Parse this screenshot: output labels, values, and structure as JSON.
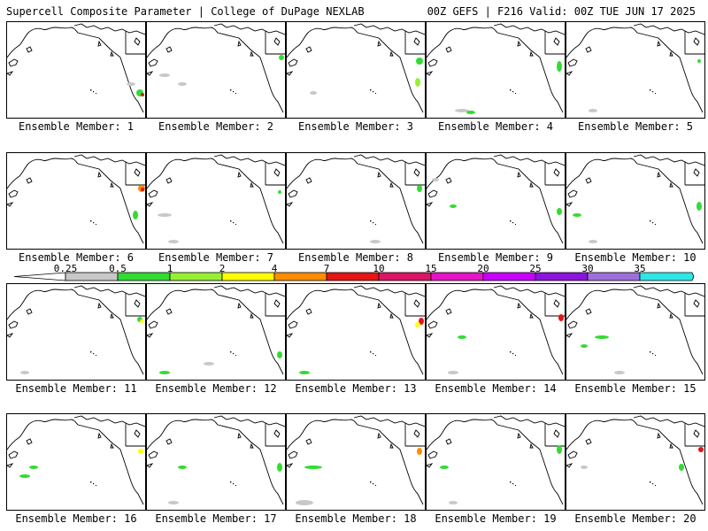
{
  "header": {
    "left": "Supercell Composite Parameter | College of DuPage NEXLAB",
    "right": "00Z GEFS | F216 Valid: 00Z TUE JUN 17 2025"
  },
  "colorbar": {
    "ticks": [
      "0.25",
      "0.5",
      "1",
      "2",
      "4",
      "7",
      "10",
      "15",
      "20",
      "25",
      "30",
      "35"
    ],
    "colors": [
      "#c8c8c8",
      "#32dc32",
      "#96f032",
      "#ffff00",
      "#ff8c00",
      "#e61414",
      "#dc1464",
      "#e614c8",
      "#c800ff",
      "#8c14dc",
      "#a06edc",
      "#2de6e6"
    ]
  },
  "panels": [
    {
      "label": "Ensemble Member: 1"
    },
    {
      "label": "Ensemble Member: 2"
    },
    {
      "label": "Ensemble Member: 3"
    },
    {
      "label": "Ensemble Member: 4"
    },
    {
      "label": "Ensemble Member: 5"
    },
    {
      "label": "Ensemble Member: 6"
    },
    {
      "label": "Ensemble Member: 7"
    },
    {
      "label": "Ensemble Member: 8"
    },
    {
      "label": "Ensemble Member: 9"
    },
    {
      "label": "Ensemble Member: 10"
    },
    {
      "label": "Ensemble Member: 11"
    },
    {
      "label": "Ensemble Member: 12"
    },
    {
      "label": "Ensemble Member: 13"
    },
    {
      "label": "Ensemble Member: 14"
    },
    {
      "label": "Ensemble Member: 15"
    },
    {
      "label": "Ensemble Member: 16"
    },
    {
      "label": "Ensemble Member: 17"
    },
    {
      "label": "Ensemble Member: 18"
    },
    {
      "label": "Ensemble Member: 19"
    },
    {
      "label": "Ensemble Member: 20"
    }
  ]
}
